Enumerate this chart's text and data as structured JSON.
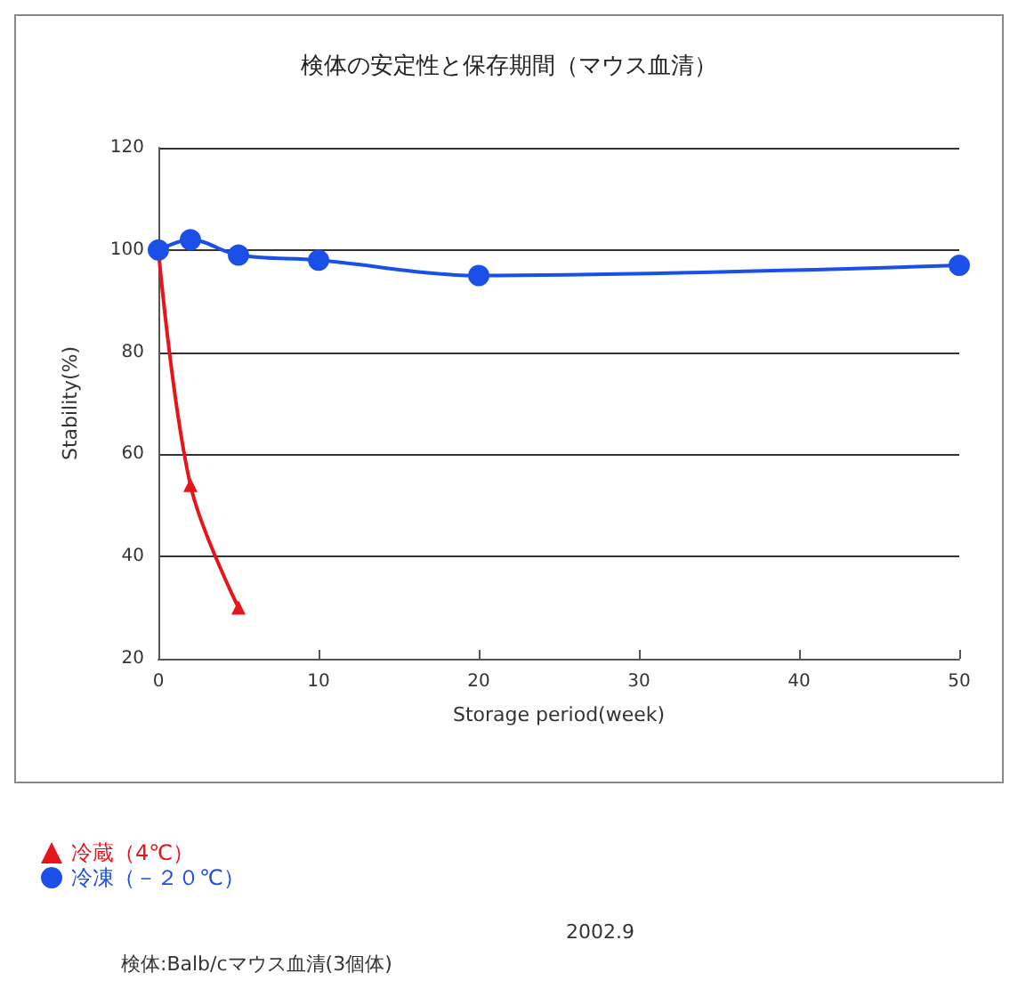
{
  "chart_data": {
    "type": "line",
    "title": "検体の安定性と保存期間（マウス血清）",
    "xlabel": "Storage period(week)",
    "ylabel": "Stability(%)",
    "xlim": [
      0,
      50
    ],
    "xticks": [
      0,
      10,
      20,
      30,
      40,
      50
    ],
    "ylim": [
      20,
      120
    ],
    "yticks": [
      20,
      40,
      60,
      80,
      100,
      120
    ],
    "grid": "y",
    "legend": "bottom left",
    "line_style": "solid",
    "series": [
      {
        "name": "冷蔵（4℃）",
        "color": "#e8141c",
        "marker": "triangle",
        "x": [
          0,
          2,
          5
        ],
        "values": [
          100,
          54,
          30
        ]
      },
      {
        "name": "冷凍（－２０℃）",
        "color": "#1a4fe8",
        "marker": "circle",
        "x": [
          0,
          2,
          5,
          10,
          20,
          50
        ],
        "values": [
          100,
          102,
          99,
          98,
          95,
          97
        ]
      }
    ],
    "annotations": [
      "検体:Balb/cマウス血清(3個体)",
      "2002.9"
    ]
  }
}
